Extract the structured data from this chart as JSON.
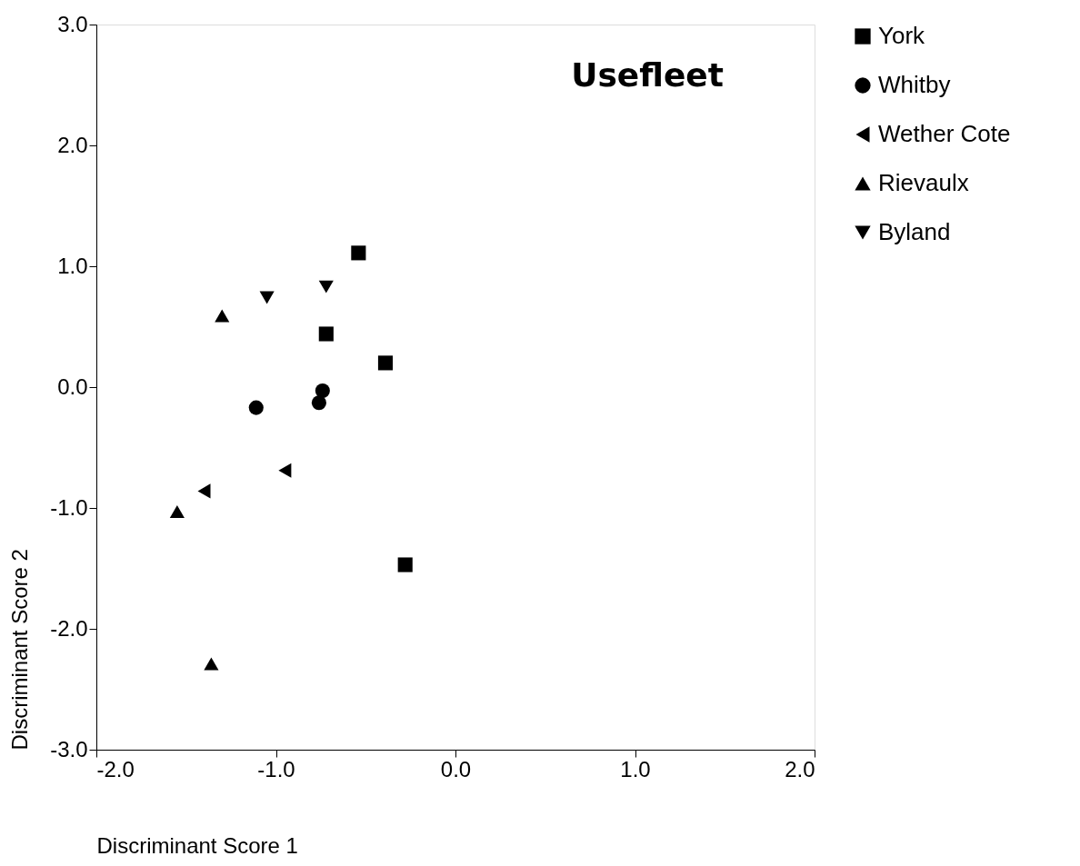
{
  "chart_data": {
    "type": "scatter",
    "title": "Usefleet",
    "xlabel": "Discriminant Score 1",
    "ylabel": "Discriminant Score 2",
    "xlim": [
      -2,
      2
    ],
    "ylim": [
      -3,
      3
    ],
    "xticks": [
      {
        "value": -2,
        "label": "-2.0"
      },
      {
        "value": -1,
        "label": "-1.0"
      },
      {
        "value": 0,
        "label": "0.0"
      },
      {
        "value": 1,
        "label": "1.0"
      },
      {
        "value": 2,
        "label": "2.0"
      }
    ],
    "yticks": [
      {
        "value": -3,
        "label": "-3.0"
      },
      {
        "value": -2,
        "label": "-2.0"
      },
      {
        "value": -1,
        "label": "-1.0"
      },
      {
        "value": 0,
        "label": "0.0"
      },
      {
        "value": 1,
        "label": "1.0"
      },
      {
        "value": 2,
        "label": "2.0"
      },
      {
        "value": 3,
        "label": "3.0"
      }
    ],
    "grid": false,
    "legend": "right",
    "series": [
      {
        "name": "York",
        "color": "#000000",
        "marker": "square",
        "x": [
          -0.54,
          -0.72,
          -0.39,
          -0.28
        ],
        "values": [
          1.11,
          0.44,
          0.2,
          -1.47
        ]
      },
      {
        "name": "Whitby",
        "color": "#000000",
        "marker": "circle",
        "x": [
          -1.11,
          -0.74,
          -0.76
        ],
        "values": [
          -0.17,
          -0.03,
          -0.13
        ]
      },
      {
        "name": "Wether Cote",
        "color": "#000000",
        "marker": "triangle-left",
        "x": [
          -0.95,
          -1.4
        ],
        "values": [
          -0.69,
          -0.86
        ]
      },
      {
        "name": "Rievaulx",
        "color": "#000000",
        "marker": "triangle",
        "x": [
          -1.3,
          -1.55,
          -1.36
        ],
        "values": [
          0.59,
          -1.03,
          -2.29
        ]
      },
      {
        "name": "Byland",
        "color": "#000000",
        "marker": "triangle-down",
        "x": [
          -1.05,
          -0.72
        ],
        "values": [
          0.74,
          0.83
        ]
      }
    ]
  }
}
